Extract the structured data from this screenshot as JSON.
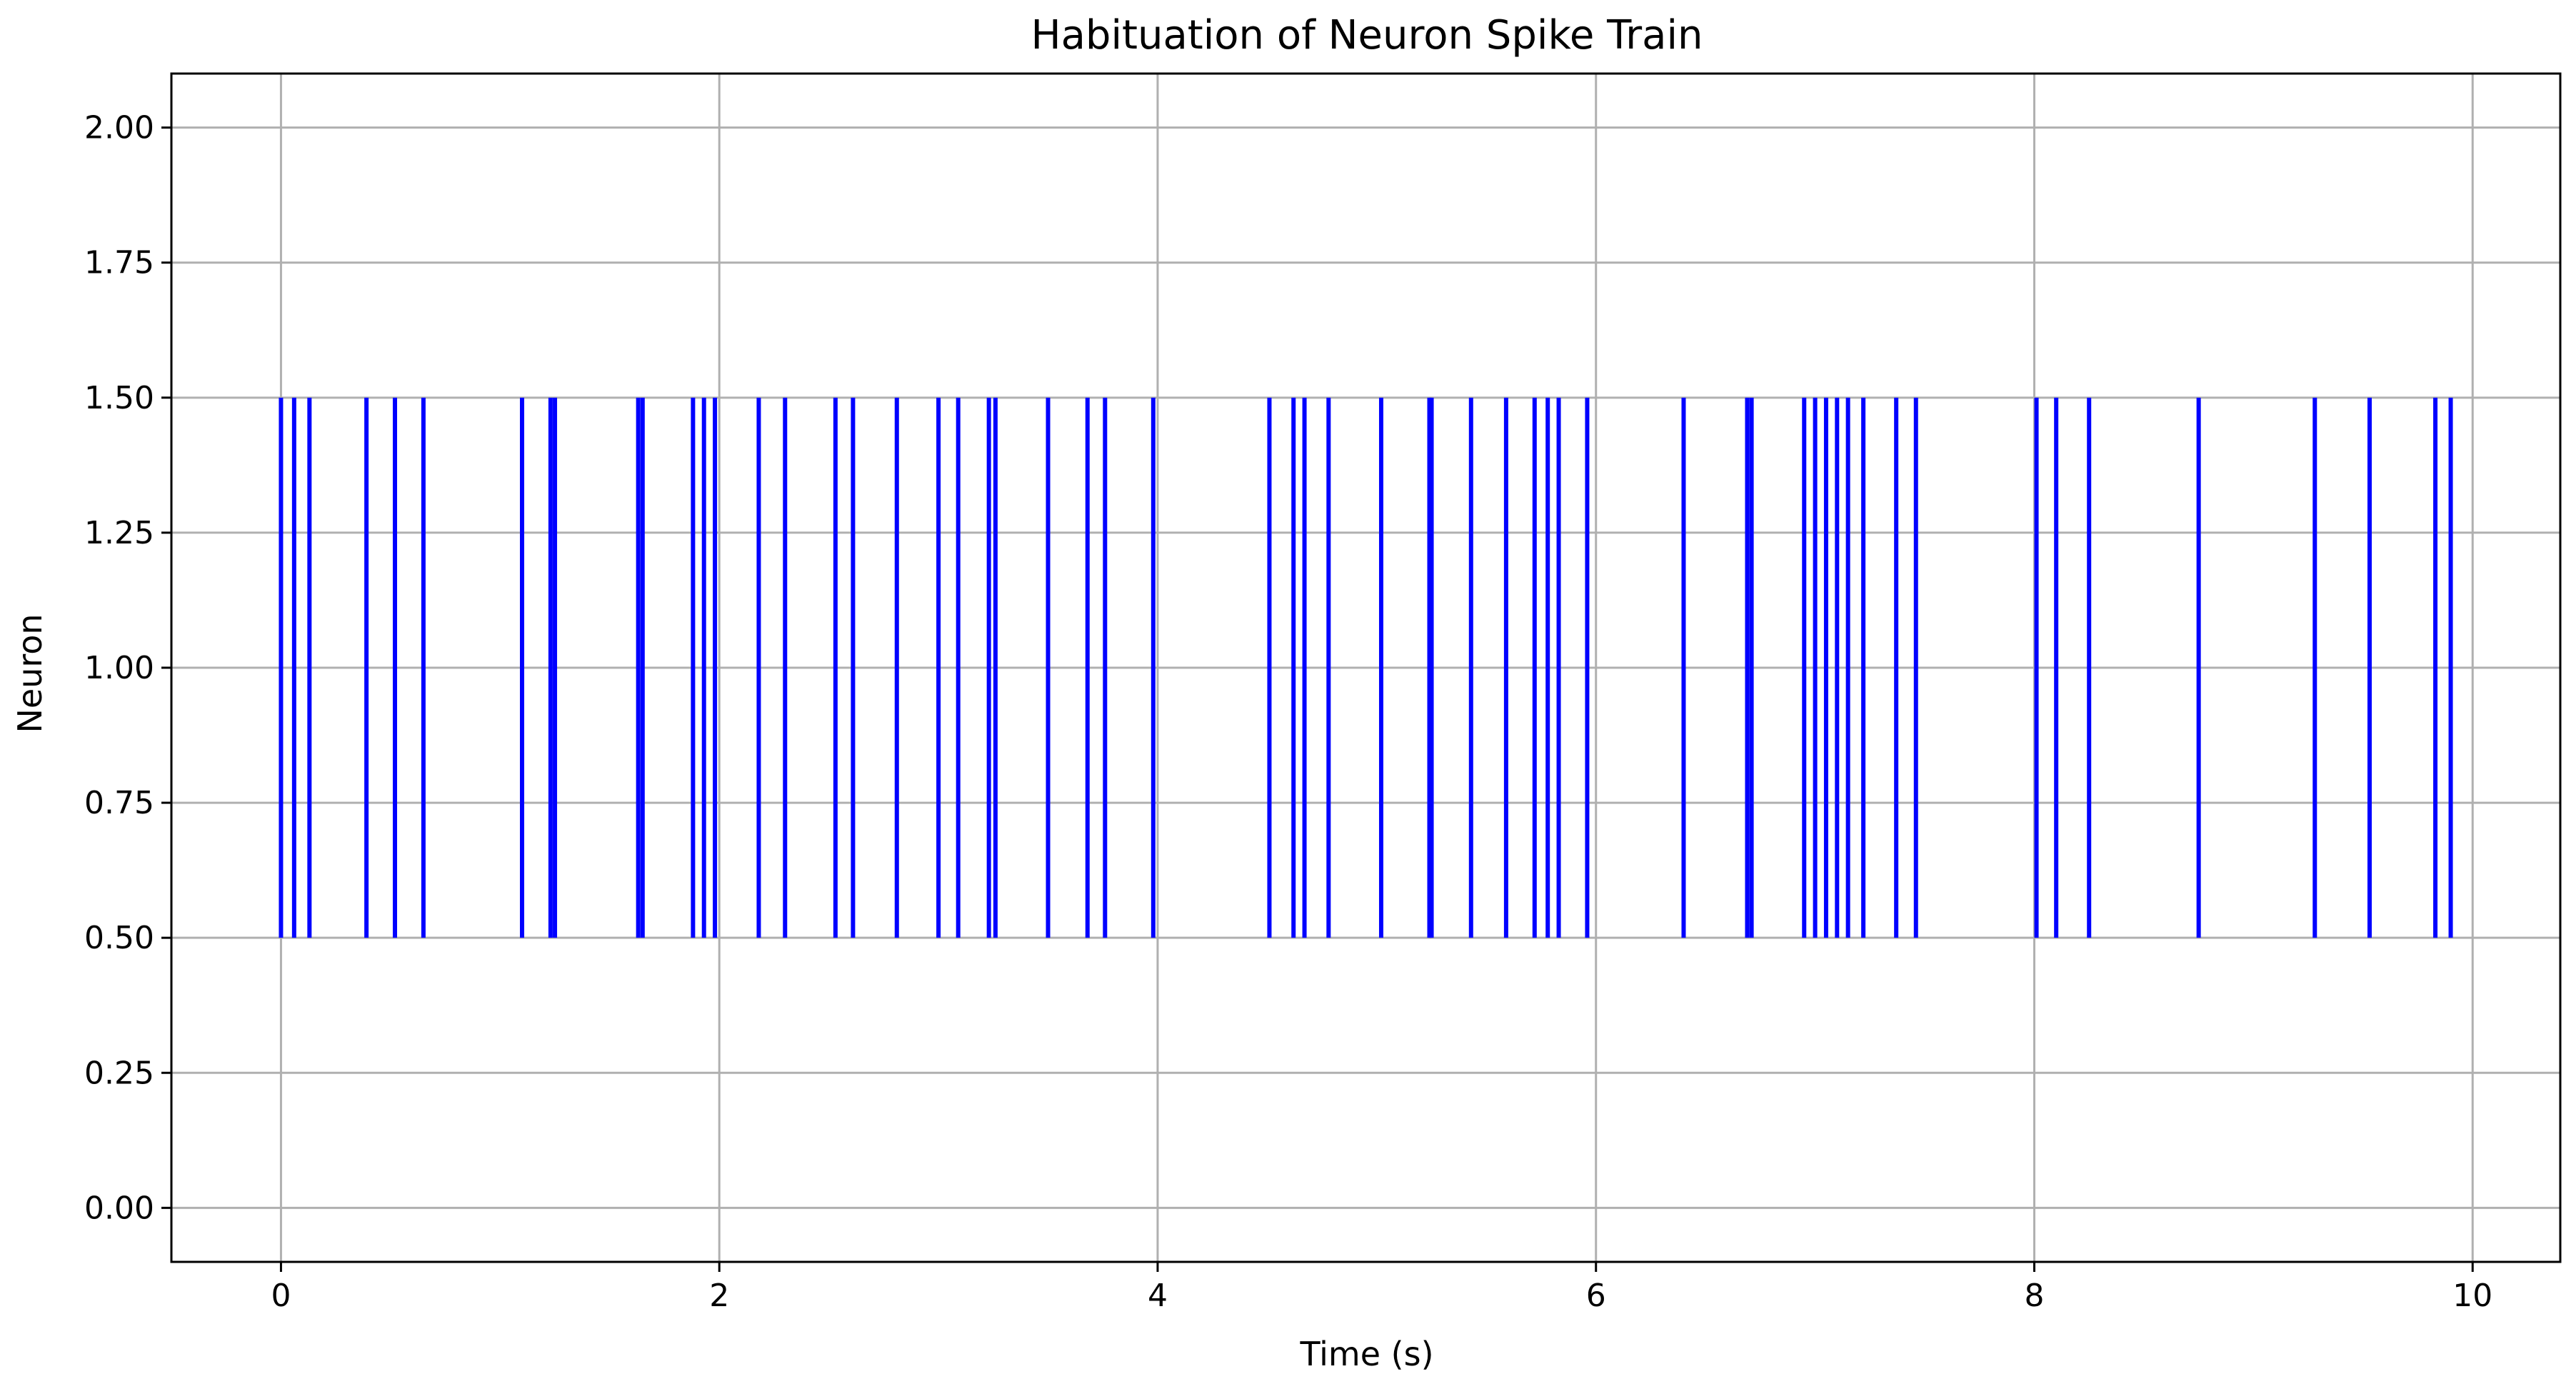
{
  "chart_data": {
    "type": "eventplot",
    "title": "Habituation of Neuron Spike Train",
    "xlabel": "Time (s)",
    "ylabel": "Neuron",
    "xlim": [
      -0.5,
      10.4
    ],
    "ylim": [
      -0.1,
      2.1
    ],
    "x_ticks": [
      0,
      2,
      4,
      6,
      8,
      10
    ],
    "x_tick_labels": [
      "0",
      "2",
      "4",
      "6",
      "8",
      "10"
    ],
    "y_ticks": [
      0,
      0.25,
      0.5,
      0.75,
      1.0,
      1.25,
      1.5,
      1.75,
      2.0
    ],
    "y_tick_labels": [
      "0.00",
      "0.25",
      "0.50",
      "0.75",
      "1.00",
      "1.25",
      "1.50",
      "1.75",
      "2.00"
    ],
    "grid": true,
    "legend": "none",
    "line_color": "#0000ff",
    "series": [
      {
        "line_offset": 1.0,
        "line_length": 1.0,
        "spike_times": [
          0.0,
          0.06,
          0.13,
          0.39,
          0.52,
          0.65,
          1.1,
          1.23,
          1.25,
          1.63,
          1.65,
          1.88,
          1.93,
          1.98,
          2.18,
          2.3,
          2.53,
          2.61,
          2.81,
          3.0,
          3.09,
          3.23,
          3.26,
          3.5,
          3.68,
          3.76,
          3.98,
          4.51,
          4.62,
          4.67,
          4.78,
          5.02,
          5.24,
          5.25,
          5.43,
          5.59,
          5.72,
          5.78,
          5.83,
          5.96,
          6.4,
          6.69,
          6.71,
          6.95,
          7.0,
          7.05,
          7.1,
          7.15,
          7.22,
          7.37,
          7.46,
          8.01,
          8.1,
          8.25,
          8.75,
          9.28,
          9.53,
          9.83,
          9.9
        ]
      }
    ]
  }
}
